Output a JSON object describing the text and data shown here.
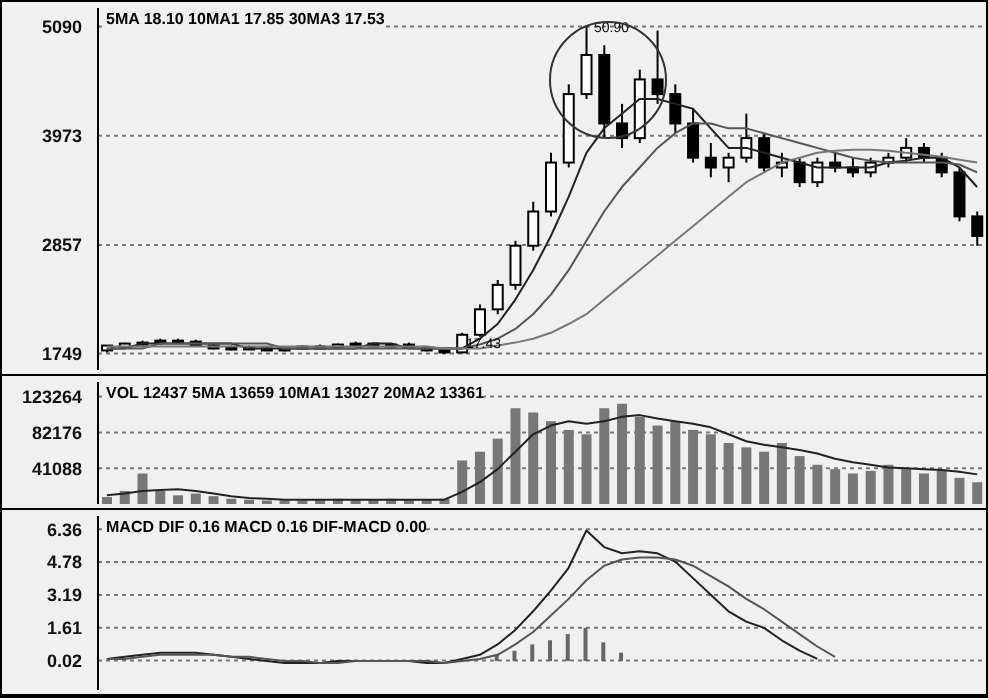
{
  "chart_data": [
    {
      "type": "candlestick",
      "categories": [
        null,
        null,
        null,
        null,
        null,
        null,
        null,
        null,
        null,
        null,
        null,
        null,
        null,
        null,
        null,
        null,
        null,
        null,
        null,
        null,
        null,
        null,
        null,
        null,
        null,
        null,
        null,
        null,
        null,
        null,
        null,
        null,
        null,
        null,
        null,
        null,
        null,
        null,
        null,
        null,
        null,
        null,
        null,
        null,
        null,
        null,
        null,
        null,
        null,
        null
      ],
      "color": "#000000",
      "ohlc": [
        [
          1780,
          1830,
          1760,
          1830
        ],
        [
          1810,
          1860,
          1800,
          1850
        ],
        [
          1850,
          1880,
          1830,
          1860
        ],
        [
          1860,
          1900,
          1840,
          1880
        ],
        [
          1880,
          1900,
          1850,
          1870
        ],
        [
          1870,
          1890,
          1820,
          1830
        ],
        [
          1830,
          1850,
          1790,
          1800
        ],
        [
          1800,
          1830,
          1780,
          1810
        ],
        [
          1810,
          1830,
          1790,
          1800
        ],
        [
          1800,
          1820,
          1780,
          1790
        ],
        [
          1790,
          1810,
          1770,
          1800
        ],
        [
          1800,
          1830,
          1790,
          1820
        ],
        [
          1820,
          1840,
          1800,
          1810
        ],
        [
          1810,
          1850,
          1800,
          1840
        ],
        [
          1840,
          1870,
          1820,
          1850
        ],
        [
          1850,
          1860,
          1810,
          1820
        ],
        [
          1820,
          1850,
          1810,
          1840
        ],
        [
          1840,
          1860,
          1800,
          1810
        ],
        [
          1810,
          1820,
          1770,
          1780
        ],
        [
          1780,
          1800,
          1743,
          1760
        ],
        [
          1760,
          1960,
          1750,
          1940
        ],
        [
          1940,
          2250,
          1920,
          2200
        ],
        [
          2200,
          2500,
          2150,
          2450
        ],
        [
          2450,
          2900,
          2400,
          2850
        ],
        [
          2850,
          3300,
          2800,
          3200
        ],
        [
          3200,
          3800,
          3150,
          3700
        ],
        [
          3700,
          4500,
          3650,
          4400
        ],
        [
          4400,
          5090,
          4350,
          4800
        ],
        [
          4800,
          4900,
          3950,
          4100
        ],
        [
          4100,
          4300,
          3850,
          3950
        ],
        [
          3950,
          4650,
          3900,
          4550
        ],
        [
          4550,
          5050,
          4300,
          4400
        ],
        [
          4400,
          4500,
          4000,
          4100
        ],
        [
          4100,
          4250,
          3700,
          3750
        ],
        [
          3750,
          3900,
          3550,
          3650
        ],
        [
          3650,
          3800,
          3500,
          3750
        ],
        [
          3750,
          4200,
          3700,
          3950
        ],
        [
          3950,
          4000,
          3600,
          3650
        ],
        [
          3650,
          3800,
          3550,
          3700
        ],
        [
          3700,
          3750,
          3450,
          3500
        ],
        [
          3500,
          3750,
          3450,
          3700
        ],
        [
          3700,
          3800,
          3600,
          3650
        ],
        [
          3650,
          3750,
          3550,
          3600
        ],
        [
          3600,
          3750,
          3550,
          3700
        ],
        [
          3700,
          3800,
          3650,
          3750
        ],
        [
          3750,
          3950,
          3700,
          3850
        ],
        [
          3850,
          3900,
          3700,
          3750
        ],
        [
          3750,
          3800,
          3550,
          3600
        ],
        [
          3600,
          3650,
          3100,
          3150
        ],
        [
          3150,
          3200,
          2850,
          2950
        ]
      ],
      "series": [
        {
          "type": "line",
          "color": "#222222",
          "values": [
            1800,
            1800,
            1850,
            1850,
            1850,
            1850,
            1850,
            1850,
            1800,
            1800,
            1800,
            1800,
            1800,
            1800,
            1800,
            1850,
            1850,
            1800,
            1800,
            1800,
            1800,
            1900,
            2050,
            2300,
            2600,
            2950,
            3350,
            3800,
            4050,
            4200,
            4350,
            4350,
            4300,
            4250,
            4050,
            3850,
            3850,
            3800,
            3750,
            3700,
            3650,
            3650,
            3650,
            3650,
            3700,
            3720,
            3750,
            3750,
            3650,
            3450
          ]
        },
        {
          "type": "line",
          "color": "#555555",
          "values": [
            1800,
            1800,
            1800,
            1850,
            1850,
            1850,
            1850,
            1850,
            1850,
            1850,
            1800,
            1800,
            1800,
            1800,
            1800,
            1800,
            1800,
            1800,
            1800,
            1800,
            1800,
            1840,
            1900,
            2000,
            2150,
            2350,
            2600,
            2900,
            3200,
            3450,
            3650,
            3850,
            4000,
            4100,
            4100,
            4050,
            4050,
            4000,
            3950,
            3900,
            3850,
            3800,
            3750,
            3720,
            3700,
            3700,
            3700,
            3700,
            3680,
            3600
          ]
        },
        {
          "type": "line",
          "color": "#777777",
          "values": [
            1820,
            1820,
            1820,
            1820,
            1820,
            1820,
            1820,
            1820,
            1820,
            1820,
            1820,
            1820,
            1820,
            1820,
            1820,
            1820,
            1820,
            1820,
            1820,
            1800,
            1800,
            1800,
            1830,
            1860,
            1900,
            1960,
            2050,
            2150,
            2300,
            2450,
            2600,
            2750,
            2900,
            3050,
            3200,
            3350,
            3500,
            3600,
            3700,
            3750,
            3800,
            3820,
            3830,
            3830,
            3820,
            3800,
            3780,
            3760,
            3730,
            3700
          ]
        }
      ],
      "ylim": [
        1580,
        5280
      ],
      "yticks": [
        1749,
        2857,
        3973,
        5090
      ],
      "grid": "y",
      "tick_labels": "y",
      "annotations": [
        "5MA 18.10  10MA1 17.85  30MA3 17.53",
        "50.90",
        "17.43"
      ]
    },
    {
      "type": "bar",
      "categories": [
        null,
        null,
        null,
        null,
        null,
        null,
        null,
        null,
        null,
        null,
        null,
        null,
        null,
        null,
        null,
        null,
        null,
        null,
        null,
        null,
        null,
        null,
        null,
        null,
        null,
        null,
        null,
        null,
        null,
        null,
        null,
        null,
        null,
        null,
        null,
        null,
        null,
        null,
        null,
        null,
        null,
        null,
        null,
        null,
        null,
        null,
        null,
        null,
        null,
        null
      ],
      "color": "#777777",
      "values": [
        8000,
        15000,
        35000,
        15000,
        10000,
        12000,
        9000,
        6000,
        5000,
        4000,
        4000,
        4000,
        5000,
        6000,
        5000,
        5000,
        6000,
        5000,
        5000,
        6000,
        50000,
        60000,
        75000,
        110000,
        105000,
        95000,
        85000,
        80000,
        110000,
        115000,
        100000,
        90000,
        95000,
        85000,
        80000,
        70000,
        65000,
        60000,
        70000,
        55000,
        45000,
        40000,
        35000,
        38000,
        45000,
        40000,
        35000,
        38000,
        30000,
        25000
      ],
      "series": [
        {
          "type": "line",
          "color": "#222222",
          "values": [
            10000,
            12000,
            15000,
            16000,
            17000,
            15000,
            12000,
            9000,
            7000,
            6000,
            5000,
            5000,
            5000,
            5000,
            5000,
            5000,
            5000,
            5000,
            5000,
            5000,
            14000,
            25000,
            40000,
            60000,
            80000,
            90000,
            95000,
            92000,
            95000,
            100000,
            102000,
            98000,
            95000,
            92000,
            88000,
            80000,
            72000,
            68000,
            65000,
            62000,
            58000,
            52000,
            48000,
            45000,
            42000,
            41000,
            40000,
            39000,
            37000,
            34000
          ]
        }
      ],
      "ylim": [
        0,
        140000
      ],
      "yticks": [
        41088,
        82176,
        123264
      ],
      "grid": "y",
      "tick_labels": "y",
      "annotations": [
        "VOL 12437  5MA 13659  10MA1 13027  20MA2 13361"
      ]
    },
    {
      "type": "line",
      "categories": [
        null,
        null,
        null,
        null,
        null,
        null,
        null,
        null,
        null,
        null,
        null,
        null,
        null,
        null,
        null,
        null,
        null,
        null,
        null,
        null,
        null,
        null,
        null,
        null,
        null,
        null,
        null,
        null,
        null,
        null,
        null,
        null,
        null,
        null,
        null,
        null,
        null,
        null,
        null,
        null,
        null,
        null,
        null,
        null,
        null,
        null,
        null,
        null,
        null,
        null
      ],
      "series": [
        {
          "type": "bar",
          "color": "#666666",
          "values": [
            null,
            null,
            null,
            null,
            null,
            null,
            null,
            null,
            null,
            null,
            null,
            null,
            null,
            null,
            null,
            null,
            null,
            null,
            null,
            null,
            null,
            null,
            0.3,
            0.5,
            0.8,
            1.0,
            1.3,
            1.6,
            0.9,
            0.4,
            null,
            null,
            null,
            null,
            null,
            null,
            null,
            null,
            null,
            null,
            null,
            null,
            null,
            null,
            null,
            null,
            null,
            null,
            null,
            null
          ]
        },
        {
          "type": "line",
          "color": "#222222",
          "values": [
            0.1,
            0.2,
            0.3,
            0.4,
            0.4,
            0.4,
            0.3,
            0.2,
            0.1,
            0.0,
            -0.1,
            -0.1,
            -0.1,
            0.0,
            0.0,
            0.0,
            0.0,
            0.0,
            -0.1,
            -0.1,
            0.1,
            0.3,
            0.8,
            1.5,
            2.4,
            3.4,
            4.5,
            6.3,
            5.5,
            5.2,
            5.3,
            5.2,
            4.8,
            4.0,
            3.2,
            2.4,
            1.9,
            1.6,
            1.0,
            0.5,
            0.1,
            null,
            null,
            null,
            null,
            null,
            null,
            null,
            null,
            null
          ]
        },
        {
          "type": "line",
          "color": "#555555",
          "values": [
            0.1,
            0.1,
            0.2,
            0.3,
            0.3,
            0.3,
            0.3,
            0.2,
            0.2,
            0.1,
            0.0,
            0.0,
            -0.1,
            -0.1,
            0.0,
            0.0,
            0.0,
            0.0,
            0.0,
            -0.1,
            0.0,
            0.1,
            0.3,
            0.8,
            1.4,
            2.2,
            3.0,
            3.9,
            4.6,
            4.9,
            5.0,
            5.0,
            4.9,
            4.6,
            4.1,
            3.6,
            3.0,
            2.5,
            1.9,
            1.3,
            0.7,
            0.2,
            null,
            null,
            null,
            null,
            null,
            null,
            null,
            null
          ]
        }
      ],
      "ylim": [
        -1.4,
        7.0
      ],
      "yticks": [
        0.02,
        1.61,
        3.19,
        4.78,
        6.36
      ],
      "grid": "y",
      "tick_labels": "y",
      "annotations": [
        "MACD  DIF 0.16  MACD 0.16  DIF-MACD 0.00"
      ]
    }
  ]
}
